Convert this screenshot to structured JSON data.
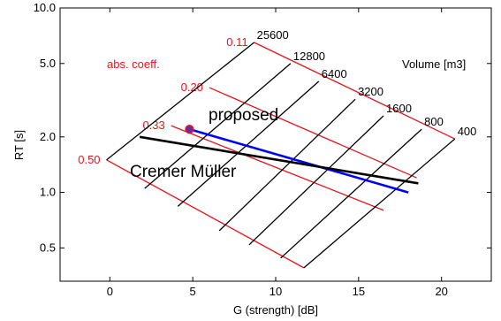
{
  "chart_data": {
    "type": "line",
    "xlabel": "G (strength) [dB]",
    "ylabel": "RT  [s]",
    "xlim": [
      -3,
      23
    ],
    "ylim": [
      0.33,
      10.0
    ],
    "yscale": "log",
    "xticks": [
      0,
      5,
      10,
      15,
      20
    ],
    "xtick_labels": [
      "0",
      "5",
      "10",
      "15",
      "20"
    ],
    "yticks": [
      0.5,
      1.0,
      2.0,
      5.0,
      10.0
    ],
    "ytick_labels": [
      "0.5",
      "1.0",
      "2.0",
      "5.0",
      "10.0"
    ],
    "grid": false,
    "annotations": {
      "abs_title": "abs. coeff.",
      "volume_title": "Volume [m3]",
      "proposed_label": "proposed",
      "cremer_label": "Cremer Müller"
    },
    "colors": {
      "red": "#e8141e",
      "black": "#000000",
      "blue": "#0000ff",
      "purple": "#6b2aa8"
    },
    "absorption_lines": [
      {
        "label": "0.11",
        "points": [
          [
            8.7,
            6.5
          ],
          [
            20.8,
            1.95
          ]
        ]
      },
      {
        "label": "0.20",
        "points": [
          [
            6.0,
            3.7
          ],
          [
            18.5,
            1.2
          ]
        ]
      },
      {
        "label": "0.33",
        "points": [
          [
            3.7,
            2.3
          ],
          [
            16.5,
            0.8
          ]
        ]
      },
      {
        "label": "0.50",
        "points": [
          [
            -0.2,
            1.5
          ],
          [
            11.7,
            0.39
          ]
        ]
      }
    ],
    "volume_lines": [
      {
        "label": "25600",
        "points": [
          [
            8.7,
            6.5
          ],
          [
            -0.2,
            1.5
          ]
        ]
      },
      {
        "label": "12800",
        "points": [
          [
            10.9,
            5.0
          ],
          [
            2.1,
            1.05
          ]
        ]
      },
      {
        "label": "6400",
        "points": [
          [
            12.6,
            4.0
          ],
          [
            4.1,
            0.84
          ]
        ]
      },
      {
        "label": "3200",
        "points": [
          [
            14.8,
            3.2
          ],
          [
            6.6,
            0.62
          ]
        ]
      },
      {
        "label": "1600",
        "points": [
          [
            16.5,
            2.6
          ],
          [
            8.4,
            0.52
          ]
        ]
      },
      {
        "label": "800",
        "points": [
          [
            18.8,
            2.2
          ],
          [
            10.3,
            0.44
          ]
        ]
      },
      {
        "label": "400",
        "points": [
          [
            20.8,
            1.95
          ],
          [
            11.7,
            0.39
          ]
        ]
      }
    ],
    "series": [
      {
        "name": "proposed",
        "color": "#0000ff",
        "points": [
          [
            4.8,
            2.2
          ],
          [
            18.0,
            1.0
          ]
        ]
      },
      {
        "name": "Cremer Müller",
        "color": "#000000",
        "points": [
          [
            1.8,
            2.0
          ],
          [
            18.6,
            1.12
          ]
        ]
      }
    ],
    "marker": {
      "x": 4.8,
      "y": 2.2
    }
  }
}
